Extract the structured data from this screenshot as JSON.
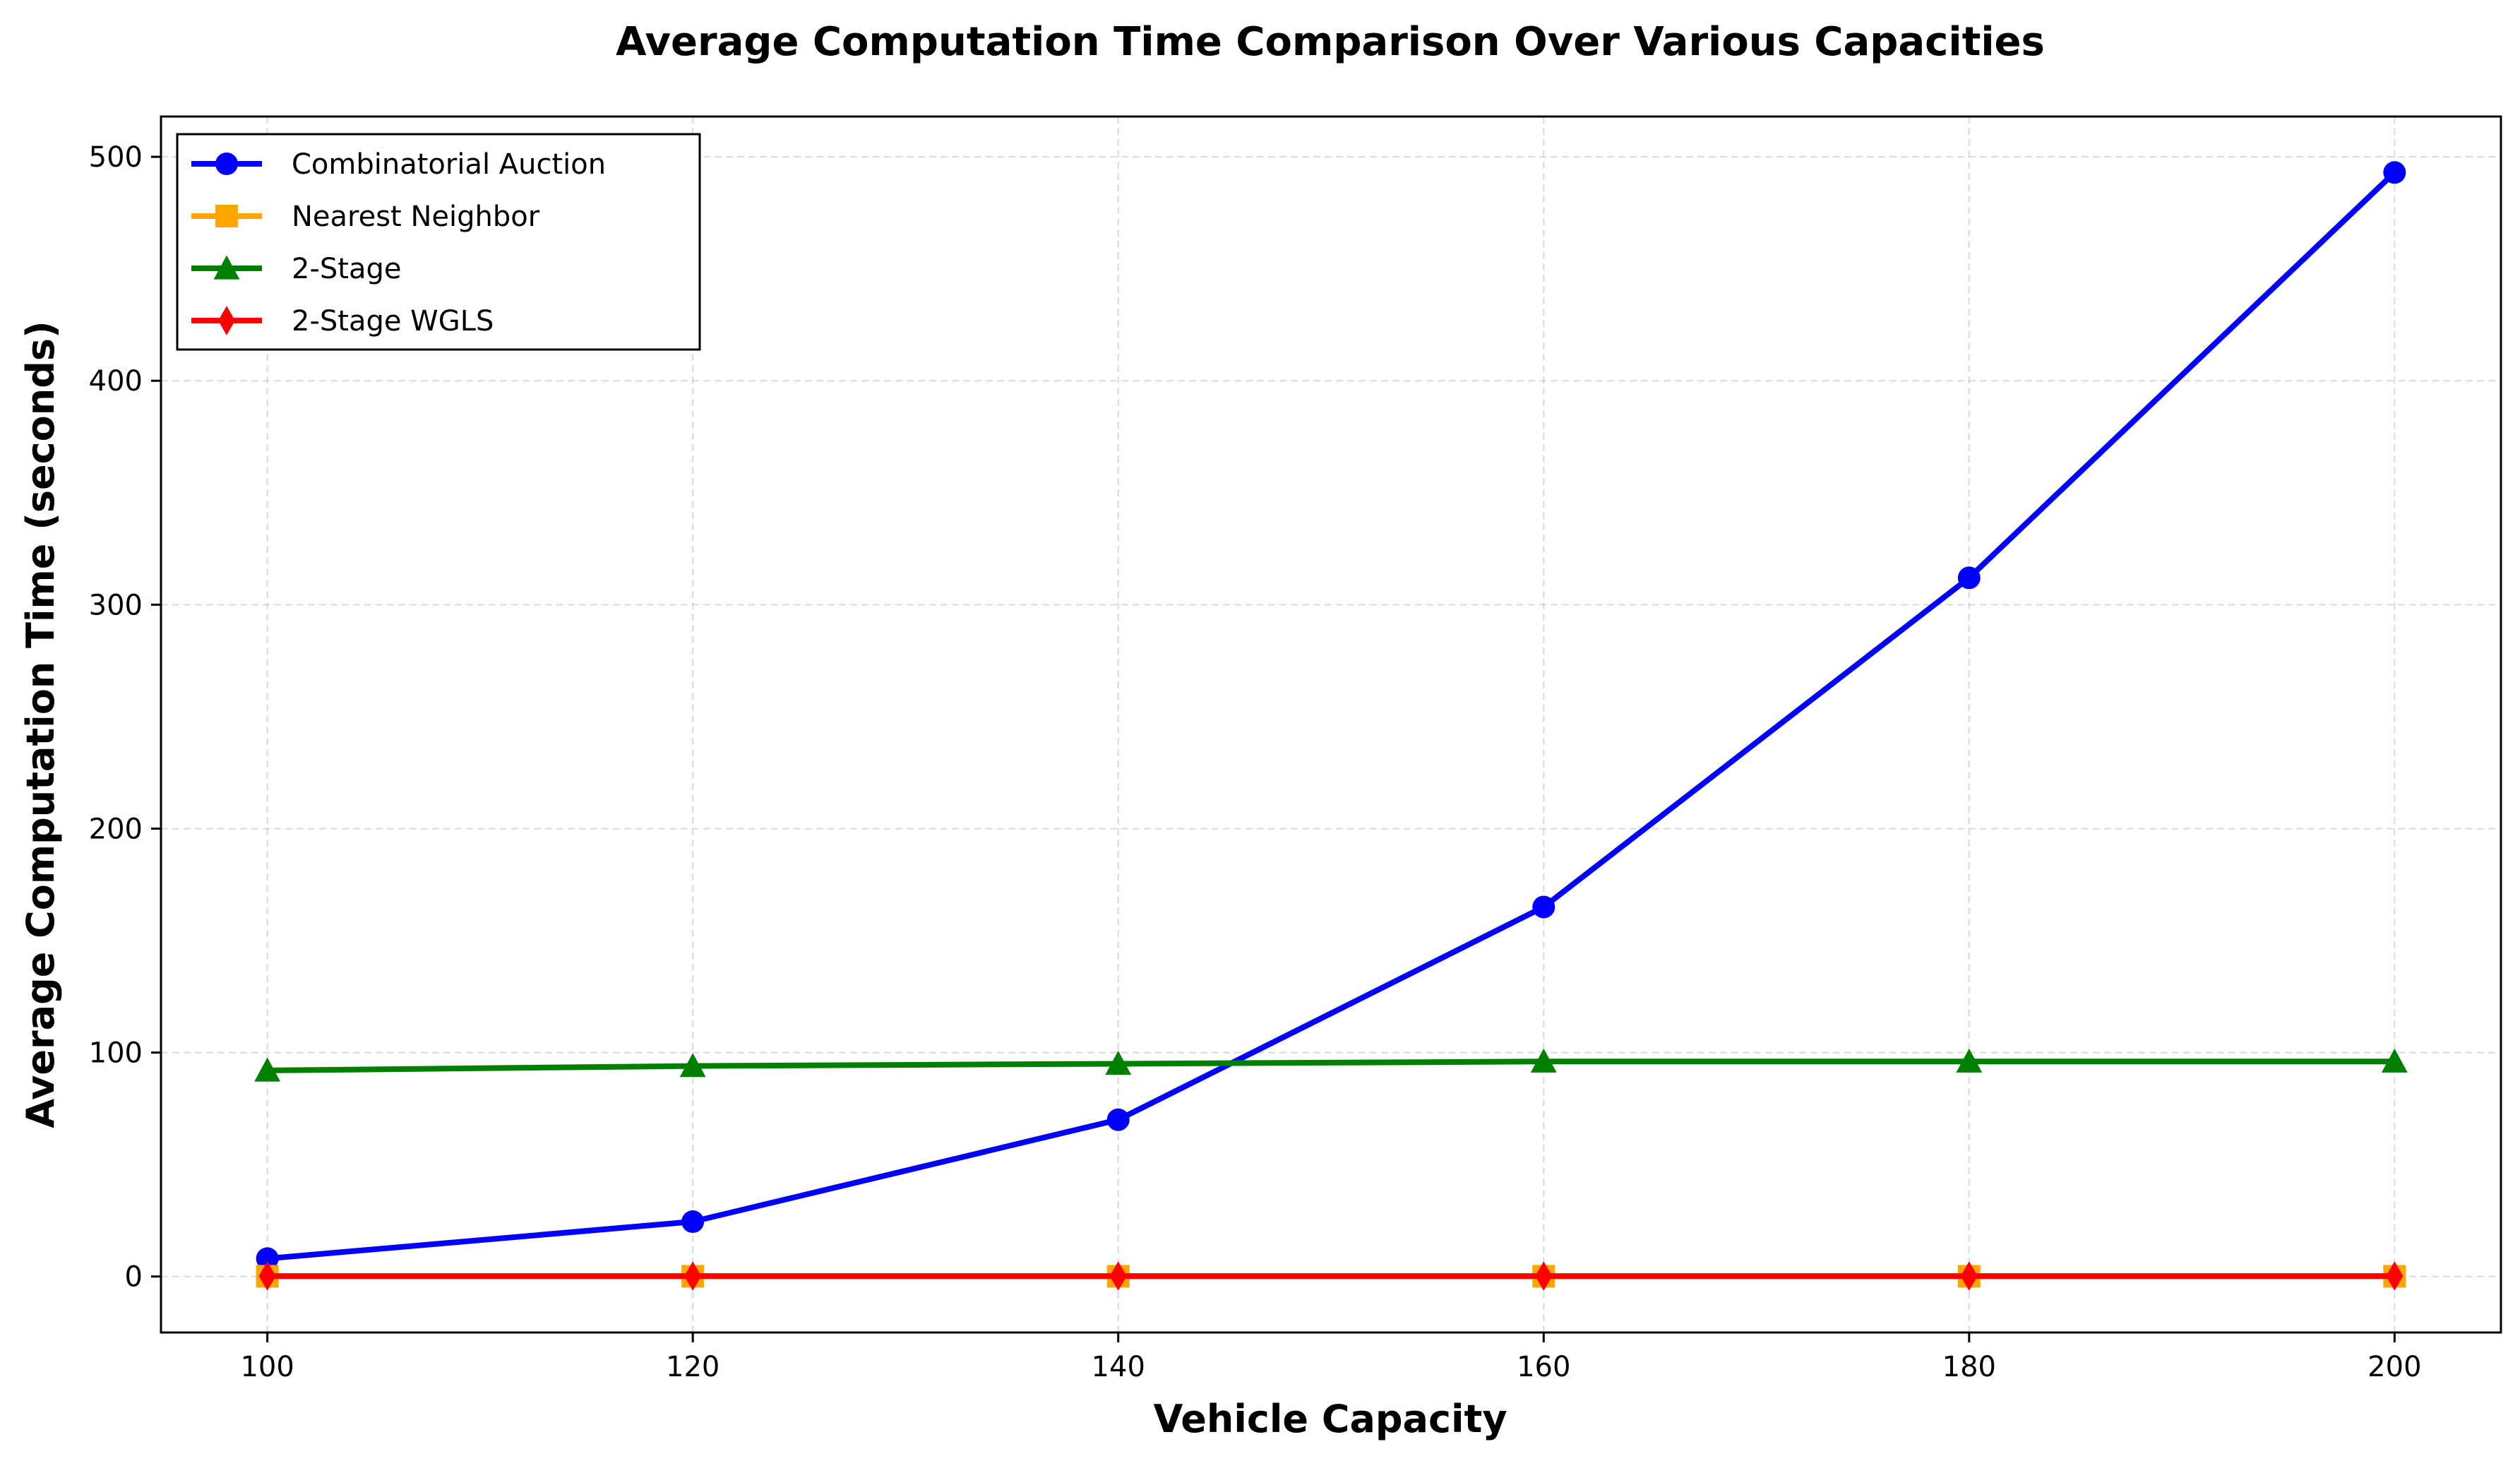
{
  "chart_data": {
    "type": "line",
    "title": "Average Computation Time Comparison Over Various Capacities",
    "xlabel": "Vehicle Capacity",
    "ylabel": "Average Computation Time (seconds)",
    "xlim": [
      95,
      205
    ],
    "ylim": [
      -25,
      518
    ],
    "x_ticks": [
      100,
      120,
      140,
      160,
      180,
      200
    ],
    "y_ticks": [
      0,
      100,
      200,
      300,
      400,
      500
    ],
    "grid": true,
    "legend_position": "upper-left",
    "x": [
      100,
      120,
      140,
      160,
      180,
      200
    ],
    "series": [
      {
        "name": "Combinatorial Auction",
        "color": "#0000ff",
        "marker": "circle",
        "values": [
          8,
          24.5,
          70,
          165,
          312,
          493
        ]
      },
      {
        "name": "Nearest Neighbor",
        "color": "#ffa500",
        "marker": "square",
        "values": [
          0.1,
          0.1,
          0.1,
          0.1,
          0.1,
          0.1
        ]
      },
      {
        "name": "2-Stage",
        "color": "#008000",
        "marker": "triangle",
        "values": [
          92,
          94,
          95,
          96,
          96,
          96
        ]
      },
      {
        "name": "2-Stage WGLS",
        "color": "#ff0000",
        "marker": "diamond",
        "values": [
          0.2,
          0.2,
          0.2,
          0.2,
          0.2,
          0.2
        ]
      }
    ]
  }
}
